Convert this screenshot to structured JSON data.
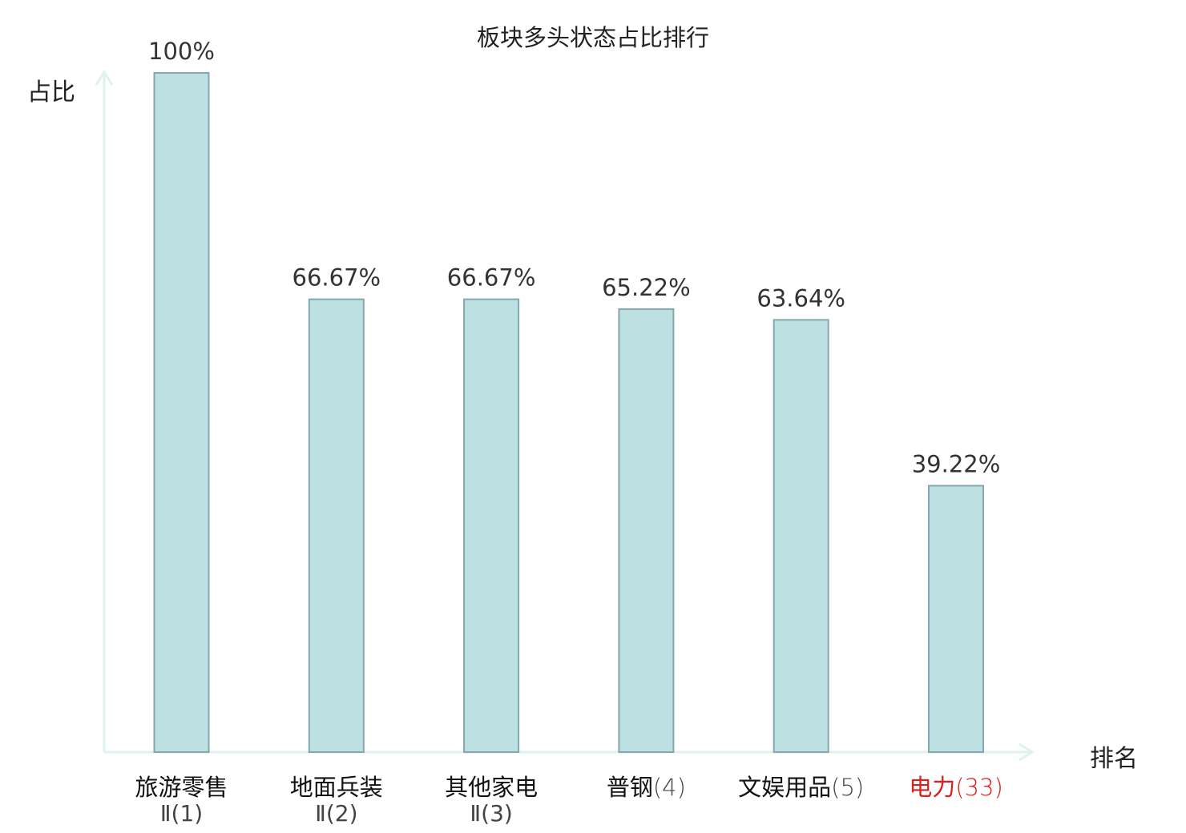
{
  "chart_data": {
    "type": "bar",
    "title": "板块多头状态占比排行",
    "ylabel": "占比",
    "xlabel": "排名",
    "ylim": [
      0,
      100
    ],
    "grid": false,
    "categories": [
      {
        "name": "旅游零售",
        "line2": "Ⅱ(1)",
        "rank": "",
        "value": 100,
        "label": "100%",
        "highlight": false
      },
      {
        "name": "地面兵装",
        "line2": "Ⅱ(2)",
        "rank": "",
        "value": 66.67,
        "label": "66.67%",
        "highlight": false
      },
      {
        "name": "其他家电",
        "line2": "Ⅱ(3)",
        "rank": "",
        "value": 66.67,
        "label": "66.67%",
        "highlight": false
      },
      {
        "name": "普钢",
        "line2": "",
        "rank": "(4)",
        "value": 65.22,
        "label": "65.22%",
        "highlight": false
      },
      {
        "name": "文娱用品",
        "line2": "",
        "rank": "(5)",
        "value": 63.64,
        "label": "63.64%",
        "highlight": false
      },
      {
        "name": "电力",
        "line2": "",
        "rank": "(33)",
        "value": 39.22,
        "label": "39.22%",
        "highlight": true
      }
    ],
    "colors": {
      "bar_fill": "#bde0e3",
      "bar_stroke": "#84a8ab",
      "axis": "#e0f2ef",
      "highlight_text": "#e01c1c",
      "label_text": "#333333",
      "category_text": "#111111",
      "rank_text": "#444444"
    }
  }
}
